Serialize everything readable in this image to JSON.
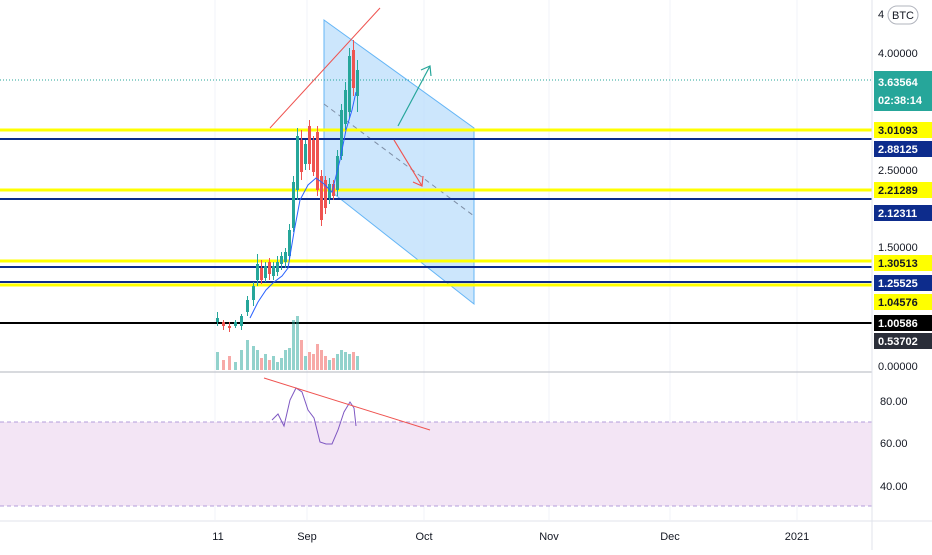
{
  "symbol_badge": {
    "prefix": "4",
    "currency": "BTC"
  },
  "price_axis": {
    "ticks": [
      "4.00000",
      "2.50000",
      "1.50000",
      "0.00000"
    ],
    "tick_values": [
      4.0,
      2.5,
      1.5,
      0.0
    ]
  },
  "last_price": {
    "value": "3.63564",
    "countdown": "02:38:14",
    "color": "#26a69a"
  },
  "price_levels": [
    {
      "label": "3.01093",
      "kind": "yellow"
    },
    {
      "label": "2.88125",
      "kind": "navy"
    },
    {
      "label": "2.21289",
      "kind": "yellow"
    },
    {
      "label": "2.12311",
      "kind": "navy"
    },
    {
      "label": "1.30513",
      "kind": "yellow"
    },
    {
      "label": "1.25525",
      "kind": "navy"
    },
    {
      "label": "1.04576",
      "kind": "yellow"
    },
    {
      "label": "1.00586",
      "kind": "black"
    },
    {
      "label": "0.53702",
      "kind": "dark"
    }
  ],
  "indicator_axis": {
    "ticks": [
      "80.00",
      "60.00",
      "40.00"
    ]
  },
  "time_axis": {
    "labels": [
      "11",
      "Sep",
      "Oct",
      "Nov",
      "Dec",
      "2021"
    ]
  },
  "colors": {
    "up": "#26a69a",
    "down": "#ef5350",
    "yellow_level": "#ffff00",
    "navy_level": "#0d2c8c",
    "channel_fill": "#bbdefb",
    "indicator_band": "#f3e5f5",
    "indicator_line": "#7e57c2"
  },
  "icons": {
    "up_arrow": "arrow-up-right-icon",
    "down_arrow": "arrow-down-right-icon"
  }
}
